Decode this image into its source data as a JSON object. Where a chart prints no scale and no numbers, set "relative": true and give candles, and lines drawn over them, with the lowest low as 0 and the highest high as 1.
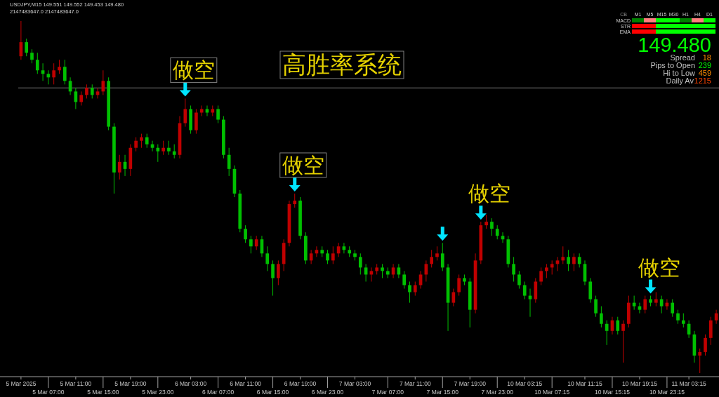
{
  "chart_data": [
    {
      "type": "candlestick",
      "relative": true,
      "title": "高胜率系统",
      "annotations": [
        "USDJPY,M15  149.551 149.552 149.453 149.480",
        "2147483647.0  2147483647.0",
        "做空",
        "做空",
        "做空",
        "做空"
      ],
      "ref_lines": [
        {
          "axis": "y",
          "value": 0.81,
          "color": "#808080"
        }
      ],
      "categories": [
        "5 Mar 2025",
        null,
        null,
        null,
        null,
        "5 Mar 07:00",
        null,
        null,
        null,
        null,
        "5 Mar 11:00",
        null,
        null,
        null,
        null,
        "5 Mar 15:00",
        null,
        null,
        null,
        null,
        "5 Mar 19:00",
        null,
        null,
        null,
        null,
        "5 Mar 23:00",
        null,
        null,
        null,
        null,
        null,
        "6 Mar 03:00",
        null,
        null,
        null,
        null,
        "6 Mar 07:00",
        null,
        null,
        null,
        null,
        "6 Mar 11:00",
        null,
        null,
        null,
        null,
        "6 Mar 15:00",
        null,
        null,
        null,
        null,
        "6 Mar 19:00",
        null,
        null,
        null,
        null,
        "6 Mar 23:00",
        null,
        null,
        null,
        null,
        "7 Mar 03:00",
        null,
        null,
        null,
        null,
        null,
        "7 Mar 07:00",
        null,
        null,
        null,
        null,
        "7 Mar 11:00",
        null,
        null,
        null,
        null,
        "7 Mar 15:00",
        null,
        null,
        null,
        null,
        "7 Mar 19:00",
        null,
        null,
        null,
        null,
        "7 Mar 23:00",
        null,
        null,
        null,
        null,
        "10 Mar 03:15",
        null,
        null,
        null,
        null,
        "10 Mar 07:15",
        null,
        null,
        null,
        null,
        null,
        "10 Mar 11:15",
        null,
        null,
        null,
        null,
        "10 Mar 15:15",
        null,
        null,
        null,
        null,
        "10 Mar 19:15",
        null,
        null,
        null,
        null,
        "10 Mar 23:15",
        null,
        null,
        null,
        "11 Mar 03:15",
        null,
        null,
        null,
        null,
        null
      ],
      "ohlc": [
        [
          0.9,
          1.0,
          0.89,
          0.94
        ],
        [
          0.94,
          0.95,
          0.9,
          0.91
        ],
        [
          0.91,
          0.92,
          0.88,
          0.89
        ],
        [
          0.89,
          0.91,
          0.85,
          0.86
        ],
        [
          0.86,
          0.88,
          0.83,
          0.85
        ],
        [
          0.85,
          0.86,
          0.82,
          0.84
        ],
        [
          0.84,
          0.88,
          0.82,
          0.86
        ],
        [
          0.86,
          0.89,
          0.85,
          0.87
        ],
        [
          0.87,
          0.89,
          0.82,
          0.83
        ],
        [
          0.83,
          0.84,
          0.79,
          0.8
        ],
        [
          0.8,
          0.81,
          0.75,
          0.77
        ],
        [
          0.77,
          0.8,
          0.76,
          0.79
        ],
        [
          0.79,
          0.82,
          0.78,
          0.81
        ],
        [
          0.81,
          0.82,
          0.78,
          0.79
        ],
        [
          0.79,
          0.81,
          0.78,
          0.8
        ],
        [
          0.8,
          0.86,
          0.79,
          0.83
        ],
        [
          0.83,
          0.84,
          0.69,
          0.7
        ],
        [
          0.7,
          0.71,
          0.51,
          0.57
        ],
        [
          0.57,
          0.62,
          0.55,
          0.6
        ],
        [
          0.6,
          0.62,
          0.56,
          0.58
        ],
        [
          0.58,
          0.65,
          0.56,
          0.64
        ],
        [
          0.64,
          0.67,
          0.63,
          0.66
        ],
        [
          0.66,
          0.68,
          0.64,
          0.67
        ],
        [
          0.67,
          0.68,
          0.64,
          0.65
        ],
        [
          0.65,
          0.66,
          0.63,
          0.64
        ],
        [
          0.64,
          0.65,
          0.6,
          0.63
        ],
        [
          0.63,
          0.66,
          0.62,
          0.64
        ],
        [
          0.64,
          0.66,
          0.62,
          0.63
        ],
        [
          0.63,
          0.65,
          0.61,
          0.62
        ],
        [
          0.62,
          0.73,
          0.61,
          0.71
        ],
        [
          0.71,
          0.78,
          0.7,
          0.75
        ],
        [
          0.75,
          0.76,
          0.68,
          0.69
        ],
        [
          0.69,
          0.75,
          0.68,
          0.74
        ],
        [
          0.74,
          0.76,
          0.73,
          0.75
        ],
        [
          0.75,
          0.76,
          0.73,
          0.74
        ],
        [
          0.74,
          0.76,
          0.73,
          0.75
        ],
        [
          0.75,
          0.76,
          0.71,
          0.72
        ],
        [
          0.72,
          0.73,
          0.61,
          0.62
        ],
        [
          0.62,
          0.64,
          0.56,
          0.58
        ],
        [
          0.58,
          0.59,
          0.5,
          0.51
        ],
        [
          0.51,
          0.52,
          0.4,
          0.41
        ],
        [
          0.41,
          0.42,
          0.37,
          0.38
        ],
        [
          0.38,
          0.39,
          0.34,
          0.36
        ],
        [
          0.36,
          0.39,
          0.35,
          0.38
        ],
        [
          0.38,
          0.39,
          0.33,
          0.34
        ],
        [
          0.34,
          0.36,
          0.29,
          0.31
        ],
        [
          0.31,
          0.32,
          0.22,
          0.27
        ],
        [
          0.27,
          0.32,
          0.25,
          0.31
        ],
        [
          0.31,
          0.38,
          0.29,
          0.37
        ],
        [
          0.37,
          0.49,
          0.36,
          0.48
        ],
        [
          0.48,
          0.51,
          0.47,
          0.49
        ],
        [
          0.49,
          0.5,
          0.38,
          0.39
        ],
        [
          0.39,
          0.4,
          0.31,
          0.32
        ],
        [
          0.32,
          0.35,
          0.31,
          0.34
        ],
        [
          0.34,
          0.36,
          0.33,
          0.35
        ],
        [
          0.35,
          0.36,
          0.33,
          0.34
        ],
        [
          0.34,
          0.35,
          0.31,
          0.32
        ],
        [
          0.32,
          0.36,
          0.31,
          0.34
        ],
        [
          0.34,
          0.37,
          0.33,
          0.36
        ],
        [
          0.36,
          0.37,
          0.34,
          0.35
        ],
        [
          0.35,
          0.36,
          0.33,
          0.34
        ],
        [
          0.34,
          0.35,
          0.32,
          0.33
        ],
        [
          0.33,
          0.34,
          0.28,
          0.3
        ],
        [
          0.3,
          0.31,
          0.26,
          0.28
        ],
        [
          0.28,
          0.3,
          0.26,
          0.29
        ],
        [
          0.29,
          0.31,
          0.28,
          0.3
        ],
        [
          0.3,
          0.31,
          0.27,
          0.29
        ],
        [
          0.29,
          0.3,
          0.27,
          0.28
        ],
        [
          0.28,
          0.31,
          0.27,
          0.3
        ],
        [
          0.3,
          0.31,
          0.27,
          0.28
        ],
        [
          0.28,
          0.29,
          0.24,
          0.25
        ],
        [
          0.25,
          0.26,
          0.2,
          0.23
        ],
        [
          0.23,
          0.26,
          0.22,
          0.25
        ],
        [
          0.25,
          0.29,
          0.24,
          0.28
        ],
        [
          0.28,
          0.32,
          0.26,
          0.31
        ],
        [
          0.31,
          0.35,
          0.3,
          0.33
        ],
        [
          0.33,
          0.36,
          0.32,
          0.34
        ],
        [
          0.34,
          0.37,
          0.29,
          0.3
        ],
        [
          0.3,
          0.31,
          0.12,
          0.2
        ],
        [
          0.2,
          0.24,
          0.19,
          0.23
        ],
        [
          0.23,
          0.28,
          0.22,
          0.27
        ],
        [
          0.27,
          0.28,
          0.25,
          0.26
        ],
        [
          0.26,
          0.27,
          0.13,
          0.18
        ],
        [
          0.18,
          0.34,
          0.17,
          0.32
        ],
        [
          0.32,
          0.43,
          0.31,
          0.42
        ],
        [
          0.42,
          0.45,
          0.41,
          0.43
        ],
        [
          0.43,
          0.44,
          0.39,
          0.41
        ],
        [
          0.41,
          0.42,
          0.38,
          0.39
        ],
        [
          0.39,
          0.4,
          0.37,
          0.38
        ],
        [
          0.38,
          0.39,
          0.3,
          0.31
        ],
        [
          0.31,
          0.33,
          0.26,
          0.28
        ],
        [
          0.28,
          0.29,
          0.24,
          0.25
        ],
        [
          0.25,
          0.26,
          0.21,
          0.22
        ],
        [
          0.22,
          0.24,
          0.16,
          0.21
        ],
        [
          0.21,
          0.27,
          0.2,
          0.26
        ],
        [
          0.26,
          0.3,
          0.25,
          0.29
        ],
        [
          0.29,
          0.31,
          0.27,
          0.3
        ],
        [
          0.3,
          0.32,
          0.28,
          0.31
        ],
        [
          0.31,
          0.33,
          0.29,
          0.32
        ],
        [
          0.32,
          0.36,
          0.31,
          0.33
        ],
        [
          0.33,
          0.35,
          0.29,
          0.31
        ],
        [
          0.31,
          0.34,
          0.29,
          0.33
        ],
        [
          0.33,
          0.34,
          0.3,
          0.31
        ],
        [
          0.31,
          0.32,
          0.25,
          0.26
        ],
        [
          0.26,
          0.27,
          0.2,
          0.21
        ],
        [
          0.21,
          0.22,
          0.16,
          0.17
        ],
        [
          0.17,
          0.19,
          0.13,
          0.14
        ],
        [
          0.14,
          0.15,
          0.08,
          0.12
        ],
        [
          0.12,
          0.16,
          0.11,
          0.15
        ],
        [
          0.15,
          0.16,
          0.11,
          0.12
        ],
        [
          0.12,
          0.15,
          0.03,
          0.14
        ],
        [
          0.14,
          0.22,
          0.13,
          0.2
        ],
        [
          0.2,
          0.22,
          0.18,
          0.19
        ],
        [
          0.19,
          0.2,
          0.17,
          0.18
        ],
        [
          0.18,
          0.22,
          0.17,
          0.21
        ],
        [
          0.21,
          0.22,
          0.19,
          0.2
        ],
        [
          0.2,
          0.23,
          0.19,
          0.21
        ],
        [
          0.21,
          0.22,
          0.17,
          0.19
        ],
        [
          0.19,
          0.21,
          0.18,
          0.2
        ],
        [
          0.2,
          0.21,
          0.16,
          0.17
        ],
        [
          0.17,
          0.18,
          0.14,
          0.15
        ],
        [
          0.15,
          0.17,
          0.13,
          0.14
        ],
        [
          0.14,
          0.15,
          0.1,
          0.11
        ],
        [
          0.11,
          0.12,
          0.03,
          0.05
        ],
        [
          0.05,
          0.07,
          0.0,
          0.06
        ],
        [
          0.06,
          0.11,
          0.05,
          0.1
        ],
        [
          0.1,
          0.16,
          0.08,
          0.15
        ],
        [
          0.15,
          0.18,
          0.14,
          0.17
        ]
      ],
      "colors": [
        "#c00000",
        "#00c000",
        "#00c000",
        "#00c000",
        "#00c000",
        "#00c000",
        "#c00000",
        "#c00000",
        "#00c000",
        "#00c000",
        "#00c000",
        "#c00000",
        "#c00000",
        "#00c000",
        "#c00000",
        "#c00000",
        "#00c000",
        "#00c000",
        "#c00000",
        "#00c000",
        "#c00000",
        "#c00000",
        "#c00000",
        "#00c000",
        "#00c000",
        "#00c000",
        "#c00000",
        "#00c000",
        "#00c000",
        "#c00000",
        "#c00000",
        "#00c000",
        "#c00000",
        "#c00000",
        "#00c000",
        "#c00000",
        "#00c000",
        "#00c000",
        "#00c000",
        "#00c000",
        "#00c000",
        "#00c000",
        "#00c000",
        "#c00000",
        "#00c000",
        "#00c000",
        "#00c000",
        "#c00000",
        "#c00000",
        "#c00000",
        "#c00000",
        "#00c000",
        "#00c000",
        "#c00000",
        "#c00000",
        "#00c000",
        "#00c000",
        "#c00000",
        "#c00000",
        "#00c000",
        "#00c000",
        "#00c000",
        "#00c000",
        "#00c000",
        "#c00000",
        "#c00000",
        "#00c000",
        "#00c000",
        "#c00000",
        "#00c000",
        "#00c000",
        "#00c000",
        "#c00000",
        "#c00000",
        "#c00000",
        "#c00000",
        "#c00000",
        "#00c000",
        "#00c000",
        "#c00000",
        "#c00000",
        "#00c000",
        "#00c000",
        "#c00000",
        "#c00000",
        "#c00000",
        "#00c000",
        "#00c000",
        "#00c000",
        "#00c000",
        "#00c000",
        "#00c000",
        "#00c000",
        "#00c000",
        "#c00000",
        "#c00000",
        "#c00000",
        "#c00000",
        "#c00000",
        "#c00000",
        "#00c000",
        "#c00000",
        "#00c000",
        "#00c000",
        "#00c000",
        "#00c000",
        "#00c000",
        "#00c000",
        "#c00000",
        "#00c000",
        "#c00000",
        "#c00000",
        "#00c000",
        "#00c000",
        "#c00000",
        "#00c000",
        "#c00000",
        "#00c000",
        "#c00000",
        "#00c000",
        "#00c000",
        "#00c000",
        "#00c000",
        "#00c000",
        "#c00000",
        "#c00000",
        "#c00000",
        "#c00000"
      ]
    },
    {
      "type": "other",
      "annotations": [
        "CB",
        "M1",
        "M5",
        "M15",
        "M30",
        "H1",
        "H4",
        "D1",
        "MACD",
        "STR",
        "EMA",
        "149.480",
        "Spread",
        "18",
        "Pips to Open",
        "239",
        "Hi to Low",
        "459",
        "Daily Av",
        "1215"
      ]
    }
  ]
}
